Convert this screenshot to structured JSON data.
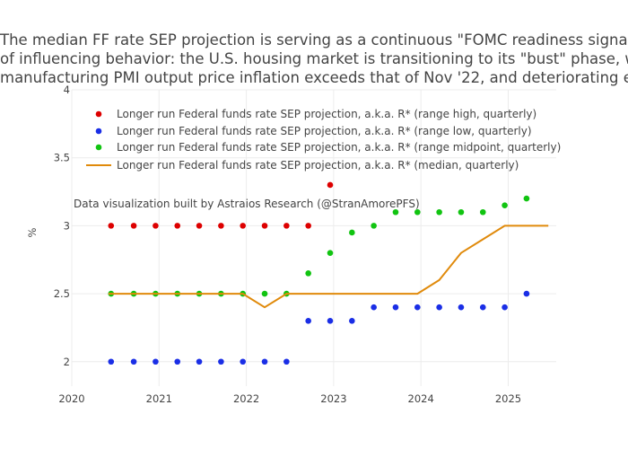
{
  "chart_data": {
    "type": "scatter",
    "title_lines": [
      "The median FF rate SEP projection is serving as a continuous \"FOMC readiness signal\" for",
      "of influencing behavior: the U.S. housing market is transitioning to its \"bust\" phase, while",
      "manufacturing PMI output price inflation exceeds that of Nov '22, and deteriorating econ"
    ],
    "ylabel": "%",
    "xlim": [
      2020.0,
      2025.55
    ],
    "ylim": [
      1.82,
      4.0
    ],
    "x_ticks": [
      {
        "value": 2020,
        "label": "2020"
      },
      {
        "value": 2021,
        "label": "2021"
      },
      {
        "value": 2022,
        "label": "2022"
      },
      {
        "value": 2023,
        "label": "2023"
      },
      {
        "value": 2024,
        "label": "2024"
      },
      {
        "value": 2025,
        "label": "2025"
      }
    ],
    "y_ticks": [
      {
        "value": 2,
        "label": "2"
      },
      {
        "value": 2.5,
        "label": "2.5"
      },
      {
        "value": 3,
        "label": "3"
      },
      {
        "value": 3.5,
        "label": "3.5"
      },
      {
        "value": 4,
        "label": "4"
      }
    ],
    "grid": true,
    "legend_position": "top-left",
    "annotation": "Data visualization built by Astraios Research (@StranAmorePFS)",
    "series": [
      {
        "name": "Longer run Federal funds rate SEP projection, a.k.a. R* (range high, quarterly)",
        "mode": "markers",
        "color": "#dd0000",
        "x": [
          2020.45,
          2020.71,
          2020.96,
          2021.21,
          2021.46,
          2021.71,
          2021.96,
          2022.21,
          2022.46,
          2022.71,
          2022.96
        ],
        "y": [
          3.0,
          3.0,
          3.0,
          3.0,
          3.0,
          3.0,
          3.0,
          3.0,
          3.0,
          3.0,
          3.3
        ]
      },
      {
        "name": "Longer run Federal funds rate SEP projection, a.k.a. R* (range low, quarterly)",
        "mode": "markers",
        "color": "#1a2ee6",
        "x": [
          2020.45,
          2020.71,
          2020.96,
          2021.21,
          2021.46,
          2021.71,
          2021.96,
          2022.21,
          2022.46,
          2022.71,
          2022.96,
          2023.21,
          2023.46,
          2023.71,
          2023.96,
          2024.21,
          2024.46,
          2024.71,
          2024.96,
          2025.21
        ],
        "y": [
          2.0,
          2.0,
          2.0,
          2.0,
          2.0,
          2.0,
          2.0,
          2.0,
          2.0,
          2.3,
          2.3,
          2.3,
          2.4,
          2.4,
          2.4,
          2.4,
          2.4,
          2.4,
          2.4,
          2.5
        ]
      },
      {
        "name": "Longer run Federal funds rate SEP projection, a.k.a. R* (range midpoint, quarterly)",
        "mode": "markers",
        "color": "#11c411",
        "x": [
          2020.45,
          2020.71,
          2020.96,
          2021.21,
          2021.46,
          2021.71,
          2021.96,
          2022.21,
          2022.46,
          2022.71,
          2022.96,
          2023.21,
          2023.46,
          2023.71,
          2023.96,
          2024.21,
          2024.46,
          2024.71,
          2024.96,
          2025.21
        ],
        "y": [
          2.5,
          2.5,
          2.5,
          2.5,
          2.5,
          2.5,
          2.5,
          2.5,
          2.5,
          2.65,
          2.8,
          2.95,
          3.0,
          3.1,
          3.1,
          3.1,
          3.1,
          3.1,
          3.15,
          3.2
        ]
      },
      {
        "name": "Longer run Federal funds rate SEP projection, a.k.a. R* (median, quarterly)",
        "mode": "lines",
        "color": "#e08a0b",
        "x": [
          2020.42,
          2020.71,
          2020.96,
          2021.21,
          2021.46,
          2021.71,
          2021.96,
          2022.21,
          2022.46,
          2022.71,
          2022.96,
          2023.21,
          2023.46,
          2023.71,
          2023.96,
          2024.21,
          2024.46,
          2024.71,
          2024.96,
          2025.21,
          2025.46
        ],
        "y": [
          2.5,
          2.5,
          2.5,
          2.5,
          2.5,
          2.5,
          2.5,
          2.4,
          2.5,
          2.5,
          2.5,
          2.5,
          2.5,
          2.5,
          2.5,
          2.6,
          2.8,
          2.9,
          3.0,
          3.0,
          3.0
        ]
      }
    ]
  }
}
